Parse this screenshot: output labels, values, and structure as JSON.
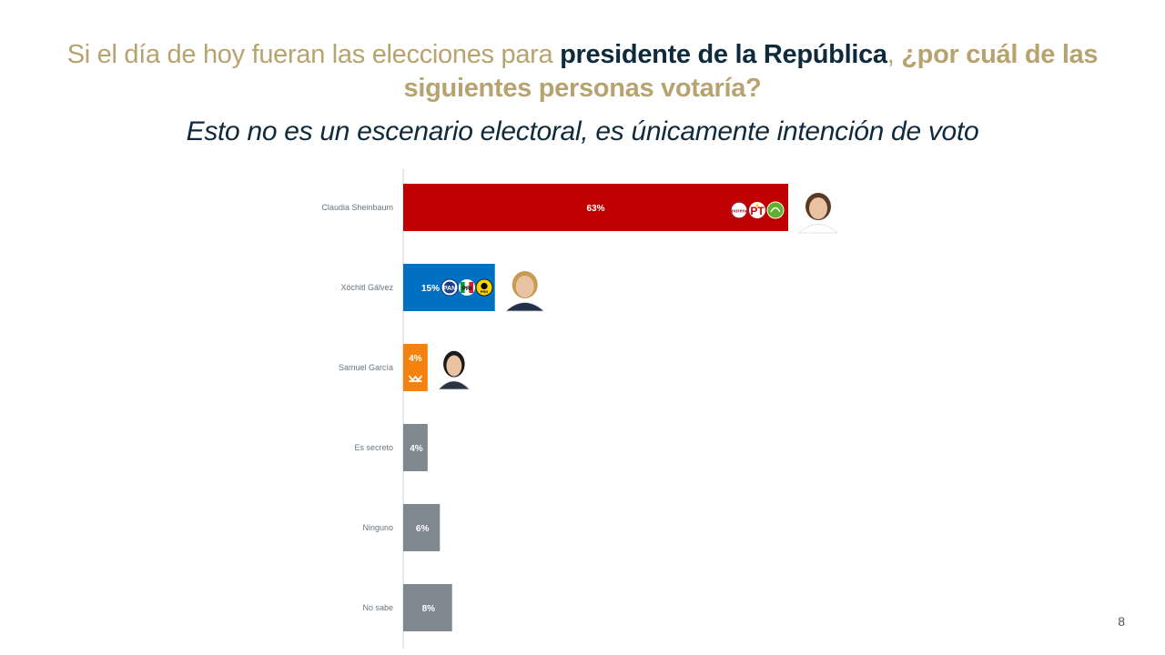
{
  "slide": {
    "title_part1": "Si el día de hoy fueran las elecciones para ",
    "title_highlight": "presidente de la República",
    "title_part2": ", ",
    "title_part3": "¿por cuál de las siguientes personas votaría?",
    "subtitle": "Esto no es un escenario electoral, es únicamente intención de voto",
    "page_number": "8"
  },
  "colors": {
    "title_gold": "#b7a36f",
    "title_navy": "#0f2a3d",
    "morena_red": "#c00000",
    "pan_blue": "#0070c0",
    "mc_orange": "#f5820f",
    "neutral_gray": "#808890"
  },
  "chart_data": {
    "type": "bar",
    "orientation": "horizontal",
    "categories": [
      "Claudia Sheinbaum",
      "Xóchitl Gálvez",
      "Samuel García",
      "Es secreto",
      "Ninguno",
      "No sabe"
    ],
    "values": [
      63,
      15,
      4,
      4,
      6,
      8
    ],
    "data_labels": [
      "63%",
      "15%",
      "4%",
      "4%",
      "6%",
      "8%"
    ],
    "bar_colors": [
      "#c00000",
      "#0070c0",
      "#f5820f",
      "#808890",
      "#808890",
      "#808890"
    ],
    "party_logos": [
      [
        "morena-logo",
        "pt-logo",
        "pvem-logo"
      ],
      [
        "pan-logo",
        "pri-logo",
        "prd-logo"
      ],
      [
        "mc-logo"
      ],
      [],
      [],
      []
    ],
    "candidate_photos": [
      "sheinbaum-photo",
      "galvez-photo",
      "garcia-photo",
      null,
      null,
      null
    ],
    "xlim": [
      0,
      63
    ],
    "grid": false,
    "legend": "none",
    "title": "",
    "xlabel": "",
    "ylabel": ""
  }
}
